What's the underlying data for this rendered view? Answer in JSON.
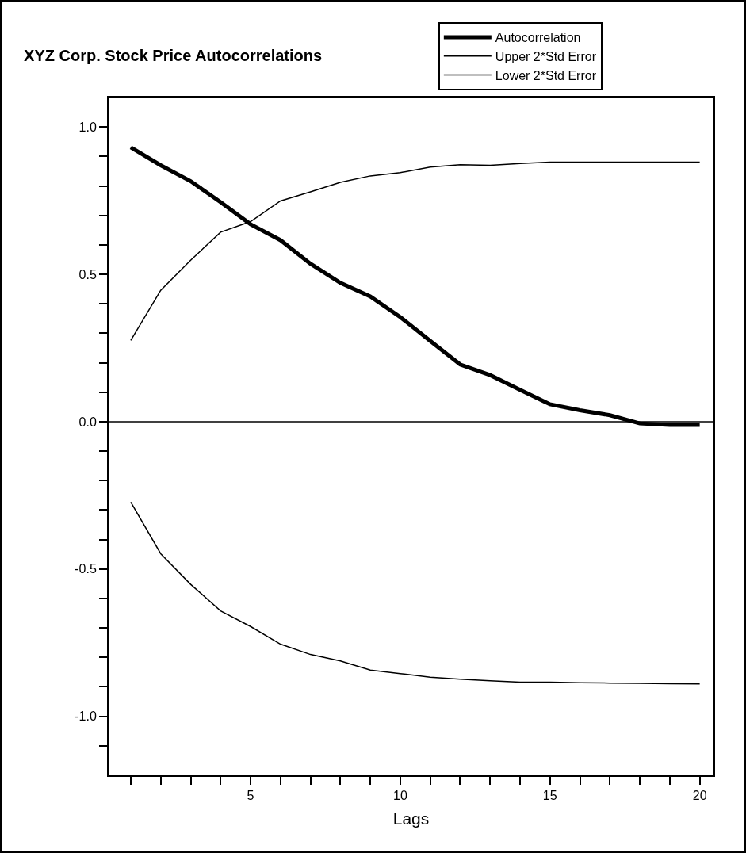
{
  "chart_data": {
    "type": "line",
    "title": "XYZ Corp. Stock Price Autocorrelations",
    "xlabel": "Lags",
    "x": [
      1,
      2,
      3,
      4,
      5,
      6,
      7,
      8,
      9,
      10,
      11,
      12,
      13,
      14,
      15,
      16,
      17,
      18,
      19,
      20
    ],
    "series": [
      {
        "name": "Autocorrelation",
        "color": "#000000",
        "values": [
          0.931,
          0.87,
          0.816,
          0.745,
          0.67,
          0.616,
          0.536,
          0.471,
          0.425,
          0.355,
          0.274,
          0.194,
          0.158,
          0.108,
          0.059,
          0.039,
          0.022,
          -0.006,
          -0.011,
          -0.011
        ]
      },
      {
        "name": "Upper 2*Std Error",
        "color": "#000000",
        "values": [
          0.276,
          0.446,
          0.548,
          0.643,
          0.679,
          0.749,
          0.78,
          0.812,
          0.834,
          0.845,
          0.864,
          0.872,
          0.87,
          0.876,
          0.881,
          0.881,
          0.881,
          0.881,
          0.881,
          0.881
        ]
      },
      {
        "name": "Lower 2*Std Error",
        "color": "#000000",
        "values": [
          -0.273,
          -0.448,
          -0.552,
          -0.642,
          -0.695,
          -0.755,
          -0.79,
          -0.812,
          -0.843,
          -0.855,
          -0.867,
          -0.874,
          -0.879,
          -0.884,
          -0.884,
          -0.886,
          -0.887,
          -0.888,
          -0.889,
          -0.89
        ]
      }
    ],
    "xlim": [
      0.26,
      20.46
    ],
    "xticks": [
      {
        "value": 1,
        "label": null
      },
      {
        "value": 2,
        "label": null
      },
      {
        "value": 3,
        "label": null
      },
      {
        "value": 4,
        "label": null
      },
      5,
      {
        "value": 6,
        "label": null
      },
      {
        "value": 7,
        "label": null
      },
      {
        "value": 8,
        "label": null
      },
      {
        "value": 9,
        "label": null
      },
      10,
      {
        "value": 11,
        "label": null
      },
      {
        "value": 12,
        "label": null
      },
      {
        "value": 13,
        "label": null
      },
      {
        "value": 14,
        "label": null
      },
      15,
      {
        "value": 16,
        "label": null
      },
      {
        "value": 17,
        "label": null
      },
      {
        "value": 18,
        "label": null
      },
      {
        "value": 19,
        "label": null
      },
      20
    ],
    "ylim": [
      -1.2,
      1.1
    ],
    "yticks": [
      {
        "value": -1.1,
        "label": null
      },
      {
        "value": -1.0,
        "label": "-1.0"
      },
      {
        "value": -0.9,
        "label": null
      },
      {
        "value": -0.8,
        "label": null
      },
      {
        "value": -0.7,
        "label": null
      },
      {
        "value": -0.6,
        "label": null
      },
      {
        "value": -0.5,
        "label": "-0.5"
      },
      {
        "value": -0.4,
        "label": null
      },
      {
        "value": -0.3,
        "label": null
      },
      {
        "value": -0.2,
        "label": null
      },
      {
        "value": -0.1,
        "label": null
      },
      {
        "value": 0,
        "label": "0.0"
      },
      {
        "value": 0.1,
        "label": null
      },
      {
        "value": 0.2,
        "label": null
      },
      {
        "value": 0.3,
        "label": null
      },
      {
        "value": 0.4,
        "label": null
      },
      {
        "value": 0.5,
        "label": "0.5"
      },
      {
        "value": 0.6,
        "label": null
      },
      {
        "value": 0.7,
        "label": null
      },
      {
        "value": 0.8,
        "label": null
      },
      {
        "value": 0.9,
        "label": null
      },
      {
        "value": 1.0,
        "label": "1.0"
      }
    ],
    "ref_lines": [
      {
        "axis": "y",
        "value": 0,
        "color": "#000000"
      }
    ],
    "grid": false,
    "legend": "top right",
    "marker": "none",
    "line_style": "solid"
  }
}
